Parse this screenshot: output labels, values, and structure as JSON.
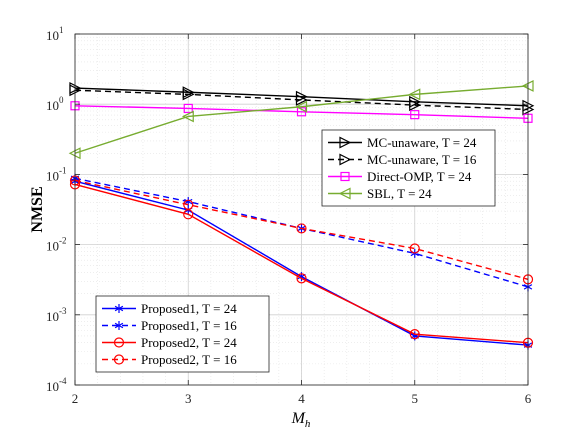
{
  "chart_data": {
    "type": "line",
    "xlabel": "M",
    "xlabel_sub": "h",
    "ylabel": "NMSE",
    "yscale": "log",
    "xlim": [
      2,
      6
    ],
    "ylim": [
      0.0001,
      10
    ],
    "x": [
      2,
      3,
      4,
      5,
      6
    ],
    "x_tick_labels": [
      "2",
      "3",
      "4",
      "5",
      "6"
    ],
    "y_ticks": [
      {
        "value": 10,
        "base": "10",
        "exp": "1"
      },
      {
        "value": 1,
        "base": "10",
        "exp": "0"
      },
      {
        "value": 0.1,
        "base": "10",
        "exp": "-1"
      },
      {
        "value": 0.01,
        "base": "10",
        "exp": "-2"
      },
      {
        "value": 0.001,
        "base": "10",
        "exp": "-3"
      },
      {
        "value": 0.0001,
        "base": "10",
        "exp": "-4"
      }
    ],
    "grid": true,
    "minor_grid": true,
    "legends": [
      {
        "placement": "upper-right",
        "series": [
          0,
          1,
          2,
          3
        ]
      },
      {
        "placement": "lower-left",
        "series": [
          4,
          5,
          6,
          7
        ]
      }
    ],
    "series": [
      {
        "name": "MC-unaware, T = 24",
        "color": "#000000",
        "dash": "solid",
        "marker": "triangle-right",
        "values": [
          1.7,
          1.48,
          1.28,
          1.08,
          0.95
        ]
      },
      {
        "name": "MC-unaware, T = 16",
        "color": "#000000",
        "dash": "dashed",
        "marker": "triangle-right",
        "values": [
          1.58,
          1.38,
          1.15,
          0.97,
          0.84
        ]
      },
      {
        "name": "Direct-OMP, T = 24",
        "color": "#ff00ff",
        "dash": "solid",
        "marker": "square",
        "values": [
          0.95,
          0.87,
          0.78,
          0.71,
          0.63
        ]
      },
      {
        "name": "SBL, T = 24",
        "color": "#77ac30",
        "dash": "solid",
        "marker": "triangle-left",
        "values": [
          0.2,
          0.67,
          0.92,
          1.38,
          1.82
        ]
      },
      {
        "name": "Proposed1, T = 24",
        "color": "#0000ff",
        "dash": "solid",
        "marker": "asterisk",
        "values": [
          0.08,
          0.031,
          0.0035,
          0.0005,
          0.00037
        ]
      },
      {
        "name": "Proposed1, T = 16",
        "color": "#0000ff",
        "dash": "dashed",
        "marker": "asterisk",
        "values": [
          0.088,
          0.041,
          0.017,
          0.0075,
          0.0025
        ]
      },
      {
        "name": "Proposed2, T = 24",
        "color": "#ff0000",
        "dash": "solid",
        "marker": "circle",
        "values": [
          0.072,
          0.027,
          0.0033,
          0.00053,
          0.0004
        ]
      },
      {
        "name": "Proposed2, T = 16",
        "color": "#ff0000",
        "dash": "dashed",
        "marker": "circle",
        "values": [
          0.082,
          0.037,
          0.017,
          0.0088,
          0.0032
        ]
      }
    ]
  }
}
